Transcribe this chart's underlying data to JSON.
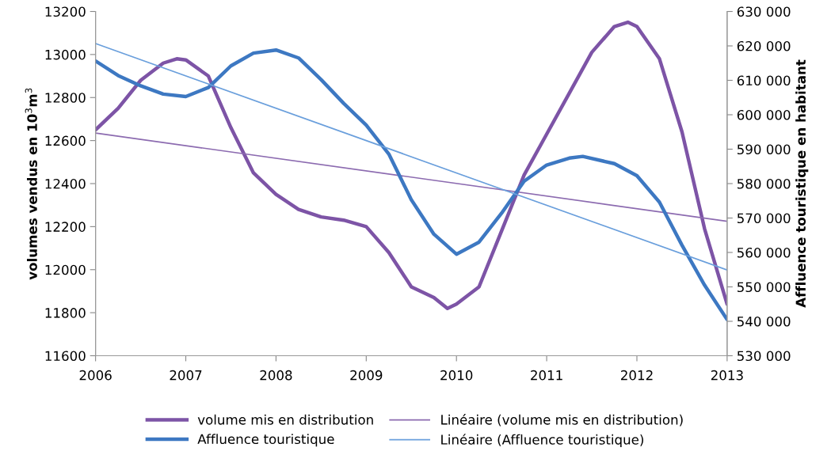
{
  "chart_data": {
    "type": "line",
    "ylabel": "volumes vendus en 10$^{3}$m$^{3}$",
    "y2label": "Affluence touristique en habitant",
    "xlim": [
      2006,
      2013
    ],
    "xticks": [
      2006,
      2007,
      2008,
      2009,
      2010,
      2011,
      2012,
      2013
    ],
    "ylim": [
      11600,
      13200
    ],
    "yticks": [
      11600,
      11800,
      12000,
      12200,
      12400,
      12600,
      12800,
      13000,
      13200
    ],
    "y2lim": [
      530000,
      630000
    ],
    "y2ticks": [
      {
        "value": 530000,
        "label": "530 000"
      },
      {
        "value": 540000,
        "label": "540 000"
      },
      {
        "value": 550000,
        "label": "550 000"
      },
      {
        "value": 560000,
        "label": "560 000"
      },
      {
        "value": 570000,
        "label": "570 000"
      },
      {
        "value": 580000,
        "label": "580 000"
      },
      {
        "value": 590000,
        "label": "590 000"
      },
      {
        "value": 600000,
        "label": "600 000"
      },
      {
        "value": 610000,
        "label": "610 000"
      },
      {
        "value": 620000,
        "label": "620 000"
      },
      {
        "value": 630000,
        "label": "630 000"
      }
    ],
    "grid": false,
    "legend": "bottom",
    "marker": "none",
    "line_style": "solid",
    "series": [
      {
        "name": "volume mis en distribution",
        "color": "#7d54a6",
        "x": [
          2006,
          2006.25,
          2006.5,
          2006.75,
          2006.9,
          2007,
          2007.25,
          2007.5,
          2007.75,
          2008,
          2008.25,
          2008.5,
          2008.75,
          2009,
          2009.25,
          2009.5,
          2009.75,
          2009.9,
          2010,
          2010.25,
          2010.5,
          2010.75,
          2011,
          2011.25,
          2011.5,
          2011.75,
          2011.9,
          2012,
          2012.25,
          2012.5,
          2012.75,
          2013
        ],
        "values": [
          12650,
          12750,
          12880,
          12960,
          12980,
          12975,
          12900,
          12660,
          12450,
          12350,
          12280,
          12245,
          12230,
          12200,
          12080,
          11920,
          11870,
          11820,
          11840,
          11920,
          12180,
          12440,
          12630,
          12820,
          13010,
          13130,
          13150,
          13130,
          12980,
          12640,
          12190,
          11840
        ]
      },
      {
        "name": "Affluence touristique",
        "color": "#3d78c2",
        "axis": "y2",
        "x": [
          2006,
          2006.25,
          2006.5,
          2006.75,
          2007,
          2007.25,
          2007.5,
          2007.75,
          2008,
          2008.25,
          2008.5,
          2008.75,
          2009,
          2009.25,
          2009.5,
          2009.75,
          2010,
          2010.25,
          2010.5,
          2010.75,
          2011,
          2011.25,
          2011.4,
          2011.75,
          2012,
          2012.25,
          2012.5,
          2012.75,
          2013
        ],
        "values": [
          615600,
          611400,
          608400,
          606000,
          605300,
          607900,
          614200,
          617900,
          618800,
          616500,
          610200,
          603300,
          597000,
          588600,
          575300,
          565300,
          559500,
          563000,
          571400,
          580700,
          585400,
          587400,
          587900,
          585800,
          582300,
          574600,
          562100,
          550500,
          540500
        ]
      },
      {
        "name": "Linéaire (volume mis en distribution)",
        "color": "#8c6bb0",
        "x": [
          2006,
          2013
        ],
        "values": [
          12635,
          12225
        ]
      },
      {
        "name": "Linéaire (Affluence touristique)",
        "color": "#6a9fdc",
        "axis": "y2",
        "x": [
          2006,
          2013
        ],
        "values": [
          620700,
          554900
        ]
      }
    ]
  }
}
